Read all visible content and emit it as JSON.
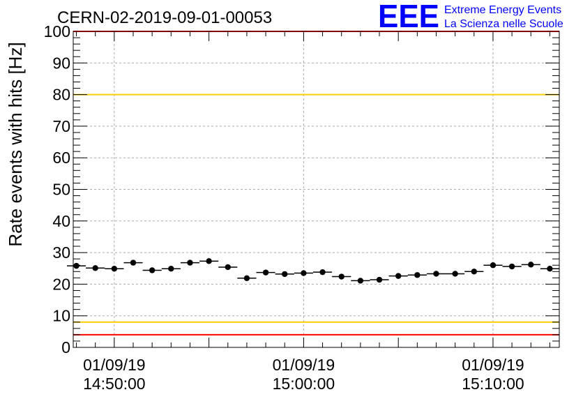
{
  "chart_data": {
    "type": "scatter",
    "title": "CERN-02-2019-09-01-00053",
    "ylabel": "Rate events with hits [Hz]",
    "xlabel": "",
    "ylim": [
      0,
      100
    ],
    "yticks": [
      0,
      10,
      20,
      30,
      40,
      50,
      60,
      70,
      80,
      90,
      100
    ],
    "xlim": [
      "2019-09-01 14:47:50",
      "2019-09-01 15:13:30"
    ],
    "xtick_labels": [
      {
        "time": "2019-09-01 14:50:00",
        "date": "01/09/19",
        "clock": "14:50:00"
      },
      {
        "time": "2019-09-01 15:00:00",
        "date": "01/09/19",
        "clock": "15:00:00"
      },
      {
        "time": "2019-09-01 15:10:00",
        "date": "01/09/19",
        "clock": "15:10:00"
      }
    ],
    "grid": true,
    "reference_lines": [
      {
        "y": 100,
        "color": "#ff0000"
      },
      {
        "y": 80,
        "color": "#ffcc00"
      },
      {
        "y": 8,
        "color": "#ffcc00"
      },
      {
        "y": 4,
        "color": "#ff0000"
      }
    ],
    "series": [
      {
        "x": [
          "14:48:00",
          "14:49:00",
          "14:50:00",
          "14:51:00",
          "14:52:00",
          "14:53:00",
          "14:54:00",
          "14:55:00",
          "14:56:00",
          "14:57:00",
          "14:58:00",
          "14:59:00",
          "15:00:00",
          "15:01:00",
          "15:02:00",
          "15:03:00",
          "15:04:00",
          "15:05:00",
          "15:06:00",
          "15:07:00",
          "15:08:00",
          "15:09:00",
          "15:10:00",
          "15:11:00",
          "15:12:00",
          "15:13:00"
        ],
        "y": [
          25.8,
          25.1,
          24.9,
          26.8,
          24.4,
          24.9,
          26.8,
          27.3,
          25.4,
          21.9,
          23.7,
          23.2,
          23.5,
          23.8,
          22.4,
          21.1,
          21.4,
          22.6,
          22.9,
          23.3,
          23.3,
          24.0,
          26.0,
          25.6,
          26.2,
          24.9
        ],
        "bin_width_minutes": 1,
        "color": "#000000"
      }
    ]
  },
  "logo": {
    "mark": "EEE",
    "line1": "Extreme Energy Events",
    "line2": "La Scienza nelle Scuole",
    "color": "#0000ff"
  }
}
